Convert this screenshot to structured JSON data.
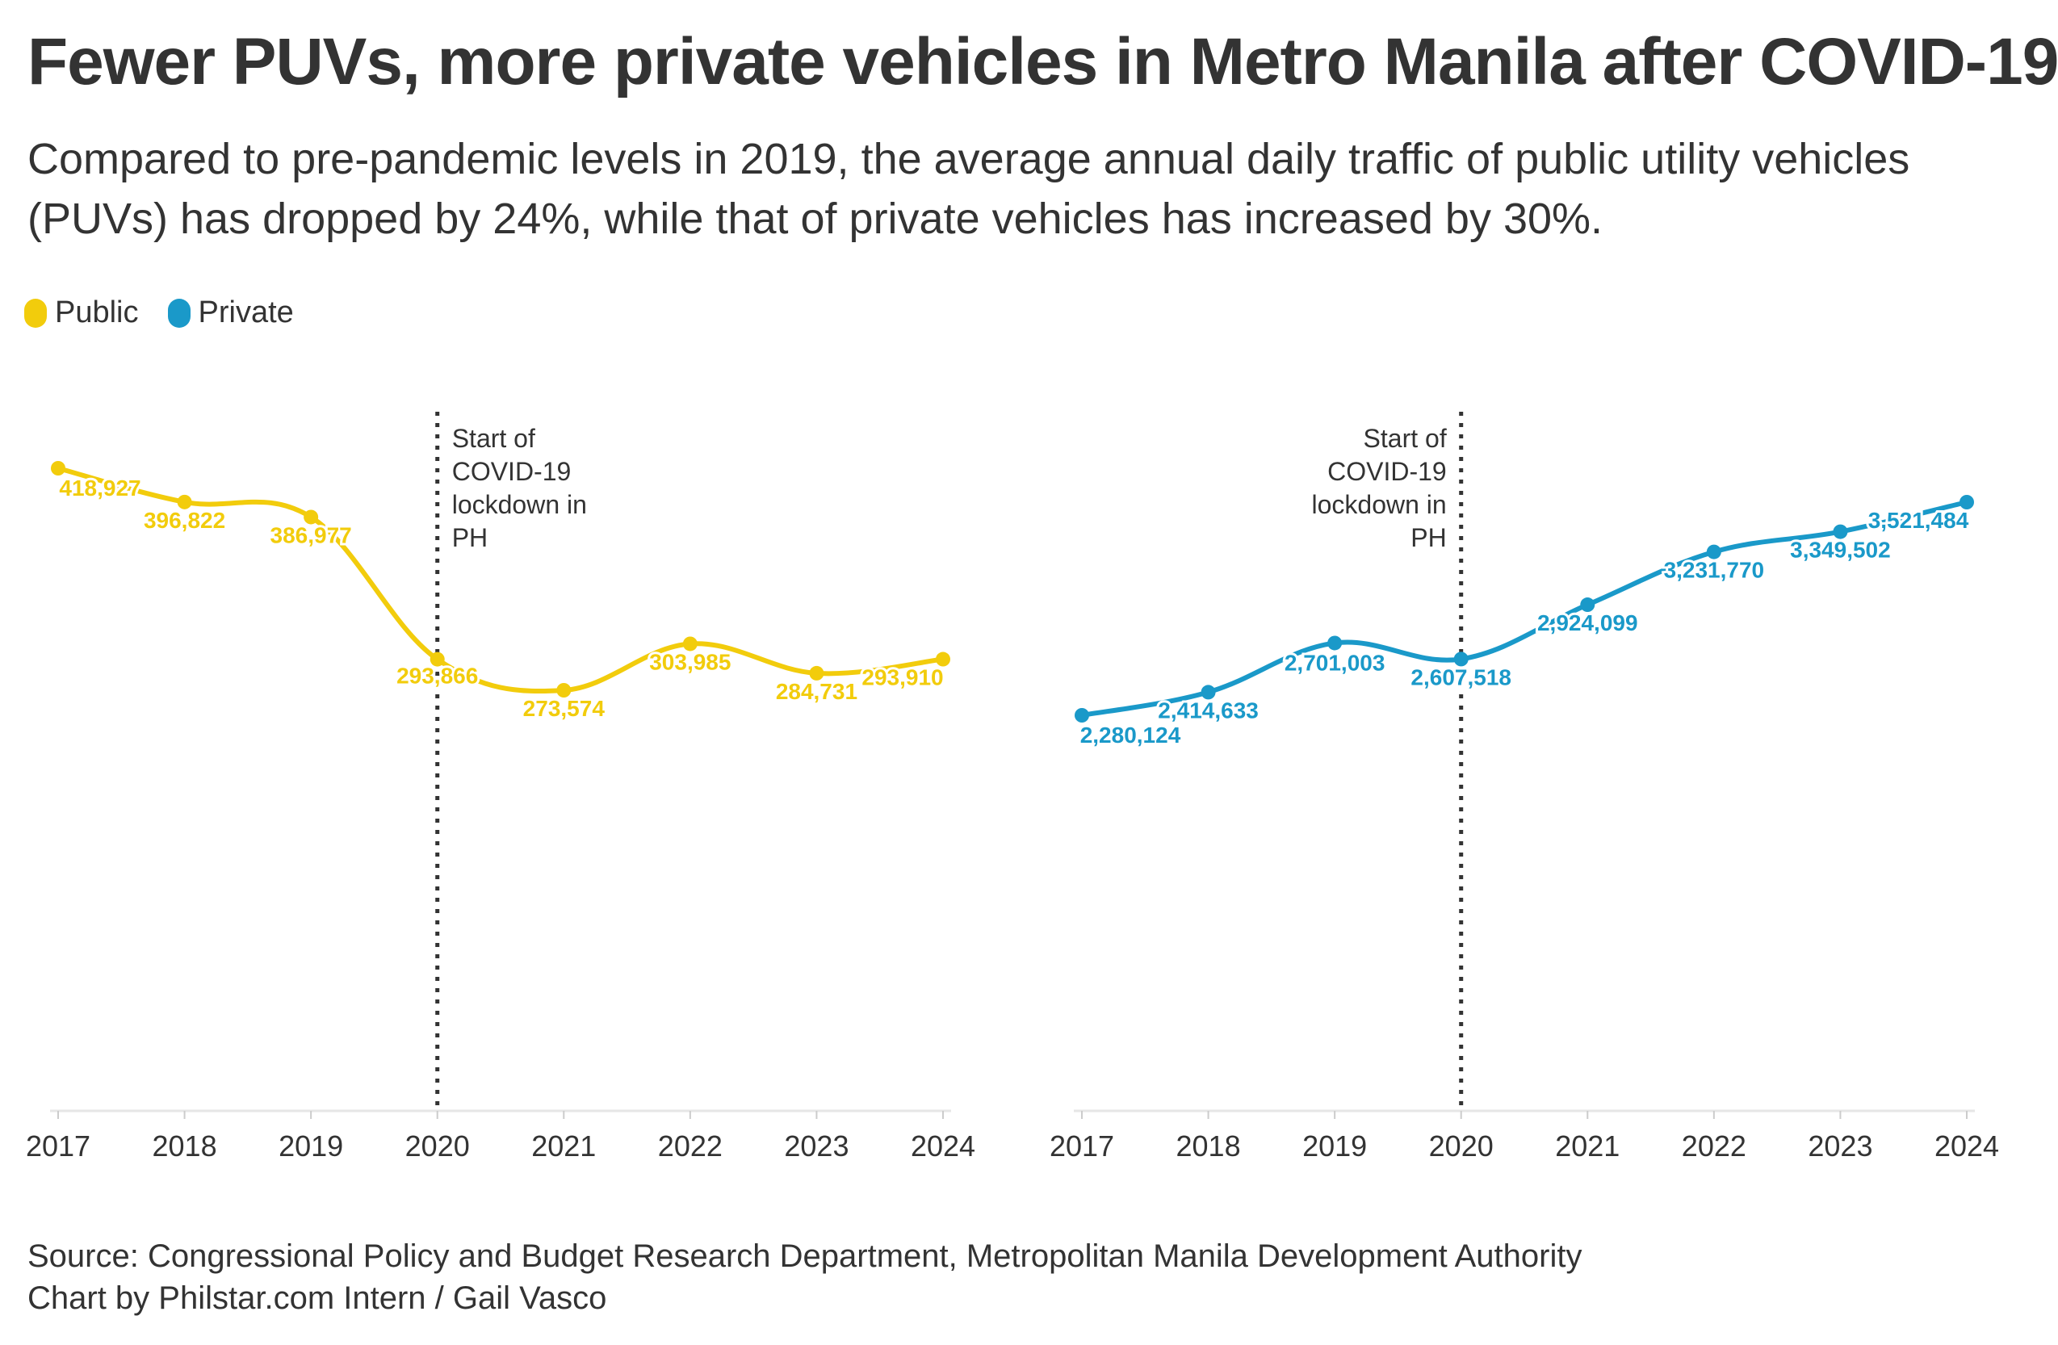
{
  "title": "Fewer PUVs, more private vehicles in Metro Manila after COVID-19",
  "subtitle": "Compared to pre-pandemic levels in 2019, the average annual daily traffic of public utility vehicles (PUVs) has dropped by 24%, while that of private vehicles has increased by 30%.",
  "legend": [
    {
      "label": "Public",
      "color": "#f2cc0c"
    },
    {
      "label": "Private",
      "color": "#1a99c9"
    }
  ],
  "footer": {
    "source": "Source: Congressional Policy and Budget Research Department, Metropolitan Manila Development Authority",
    "credit": "Chart by Philstar.com Intern / Gail Vasco"
  },
  "chart_data": [
    {
      "type": "line",
      "x": [
        "2017",
        "2018",
        "2019",
        "2020",
        "2021",
        "2022",
        "2023",
        "2024"
      ],
      "series": [
        {
          "name": "Public",
          "color": "#f2cc0c",
          "values": [
            418927,
            396822,
            386977,
            293866,
            273574,
            303985,
            284731,
            293910
          ],
          "labels": [
            "418,927",
            "396,822",
            "386,977",
            "293,866",
            "273,574",
            "303,985",
            "284,731",
            "293,910"
          ]
        }
      ],
      "ylim": [
        0,
        450000
      ],
      "annotation": {
        "x": "2020",
        "lines": [
          "Start of",
          "COVID-19",
          "lockdown in",
          "PH"
        ]
      }
    },
    {
      "type": "line",
      "x": [
        "2017",
        "2018",
        "2019",
        "2020",
        "2021",
        "2022",
        "2023",
        "2024"
      ],
      "series": [
        {
          "name": "Private",
          "color": "#1a99c9",
          "values": [
            2280124,
            2414633,
            2701003,
            2607518,
            2924099,
            3231770,
            3349502,
            3521484
          ],
          "labels": [
            "2,280,124",
            "2,414,633",
            "2,701,003",
            "2,607,518",
            "2,924,099",
            "3,231,770",
            "3,349,502",
            "3,521,484"
          ]
        }
      ],
      "ylim": [
        0,
        3700000
      ],
      "annotation": {
        "x": "2020",
        "lines": [
          "Start of",
          "COVID-19",
          "lockdown in",
          "PH"
        ]
      }
    }
  ]
}
